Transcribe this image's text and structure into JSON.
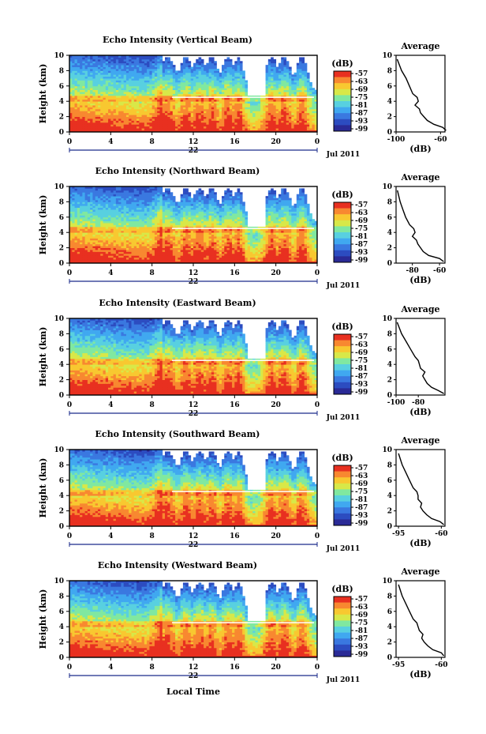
{
  "figure": {
    "xlabel": "Local Time",
    "date_label": "Jul 2011",
    "day_label": "22",
    "x_ticks": [
      "0",
      "4",
      "8",
      "12",
      "16",
      "20",
      "0"
    ],
    "y_ticks": [
      "0",
      "2",
      "4",
      "6",
      "8",
      "10"
    ],
    "ylabel": "Height (km)",
    "colorbar_unit": "(dB)",
    "colorbar_ticks": [
      "-57",
      "-63",
      "-69",
      "-75",
      "-81",
      "-87",
      "-93",
      "-99"
    ],
    "avg_title": "Average",
    "avg_xlabel": "(dB)",
    "colors": {
      "scale": [
        "#2a2a96",
        "#2c4cc0",
        "#3a78e0",
        "#40a8f0",
        "#58d0e0",
        "#80e8a0",
        "#d8e848",
        "#f8c830",
        "#f88830",
        "#e83020"
      ]
    }
  },
  "chart_data": [
    {
      "type": "heatmap",
      "title": "Echo Intensity (Vertical Beam)",
      "xlabel": "Local Time",
      "ylabel": "Height (km)",
      "xlim": [
        0,
        24
      ],
      "ylim": [
        0,
        10
      ],
      "colorbar": {
        "unit": "(dB)",
        "range": [
          -99,
          -57
        ]
      },
      "average_profile": {
        "title": "Average",
        "xlabel": "(dB)",
        "xlim": [
          -100,
          -56
        ],
        "x_ticks": [
          "-100",
          "-60"
        ],
        "x": [
          -55,
          -58,
          -66,
          -72,
          -75,
          -78,
          -79,
          -83,
          -80,
          -81,
          -85,
          -88,
          -91,
          -95,
          -99
        ],
        "y": [
          0.2,
          0.6,
          1,
          1.5,
          2,
          2.5,
          3,
          3.5,
          4,
          4.5,
          5,
          6,
          7,
          8,
          9.5
        ]
      }
    },
    {
      "type": "heatmap",
      "title": "Echo Intensity (Northward Beam)",
      "xlabel": "Local Time",
      "ylabel": "Height (km)",
      "xlim": [
        0,
        24
      ],
      "ylim": [
        0,
        10
      ],
      "colorbar": {
        "unit": "(dB)",
        "range": [
          -99,
          -57
        ]
      },
      "average_profile": {
        "title": "Average",
        "xlabel": "(dB)",
        "xlim": [
          -92,
          -56
        ],
        "x_ticks": [
          "-80",
          "-60"
        ],
        "x": [
          -57,
          -60,
          -68,
          -72,
          -74,
          -76,
          -77,
          -80,
          -78,
          -79,
          -82,
          -85,
          -87,
          -89,
          -91
        ],
        "y": [
          0.2,
          0.6,
          1,
          1.5,
          2,
          2.5,
          3,
          3.5,
          4,
          4.5,
          5,
          6,
          7,
          8,
          9.5
        ]
      }
    },
    {
      "type": "heatmap",
      "title": "Echo Intensity (Eastward Beam)",
      "xlabel": "Local Time",
      "ylabel": "Height (km)",
      "xlim": [
        0,
        24
      ],
      "ylim": [
        0,
        10
      ],
      "colorbar": {
        "unit": "(dB)",
        "range": [
          -99,
          -57
        ]
      },
      "average_profile": {
        "title": "Average",
        "xlabel": "(dB)",
        "xlim": [
          -100,
          -56
        ],
        "x_ticks": [
          "-100",
          "-80"
        ],
        "x": [
          -57,
          -62,
          -68,
          -72,
          -74,
          -76,
          -74,
          -78,
          -79,
          -80,
          -83,
          -87,
          -91,
          -95,
          -99
        ],
        "y": [
          0.2,
          0.6,
          1,
          1.5,
          2,
          2.5,
          3,
          3.5,
          4,
          4.5,
          5,
          6,
          7,
          8,
          9.5
        ]
      }
    },
    {
      "type": "heatmap",
      "title": "Echo Intensity (Southward Beam)",
      "xlabel": "Local Time",
      "ylabel": "Height (km)",
      "xlim": [
        0,
        24
      ],
      "ylim": [
        0,
        10
      ],
      "colorbar": {
        "unit": "(dB)",
        "range": [
          -99,
          -57
        ]
      },
      "average_profile": {
        "title": "Average",
        "xlabel": "(dB)",
        "xlim": [
          -97,
          -57
        ],
        "x_ticks": [
          "-95",
          "-60"
        ],
        "x": [
          -58,
          -61,
          -68,
          -72,
          -75,
          -77,
          -76,
          -79,
          -79,
          -80,
          -83,
          -86,
          -89,
          -92,
          -95
        ],
        "y": [
          0.2,
          0.6,
          1,
          1.5,
          2,
          2.5,
          3,
          3.5,
          4,
          4.5,
          5,
          6,
          7,
          8,
          9.5
        ]
      }
    },
    {
      "type": "heatmap",
      "title": "Echo Intensity (Westward Beam)",
      "xlabel": "Local Time",
      "ylabel": "Height (km)",
      "xlim": [
        0,
        24
      ],
      "ylim": [
        0,
        10
      ],
      "colorbar": {
        "unit": "(dB)",
        "range": [
          -99,
          -57
        ]
      },
      "average_profile": {
        "title": "Average",
        "xlabel": "(dB)",
        "xlim": [
          -97,
          -57
        ],
        "x_ticks": [
          "-95",
          "-60"
        ],
        "x": [
          -58,
          -60,
          -67,
          -71,
          -74,
          -76,
          -75,
          -78,
          -79,
          -80,
          -83,
          -86,
          -89,
          -92,
          -95
        ],
        "y": [
          0.2,
          0.6,
          1,
          1.5,
          2,
          2.5,
          3,
          3.5,
          4,
          4.5,
          5,
          6,
          7,
          8,
          9.5
        ]
      }
    }
  ]
}
